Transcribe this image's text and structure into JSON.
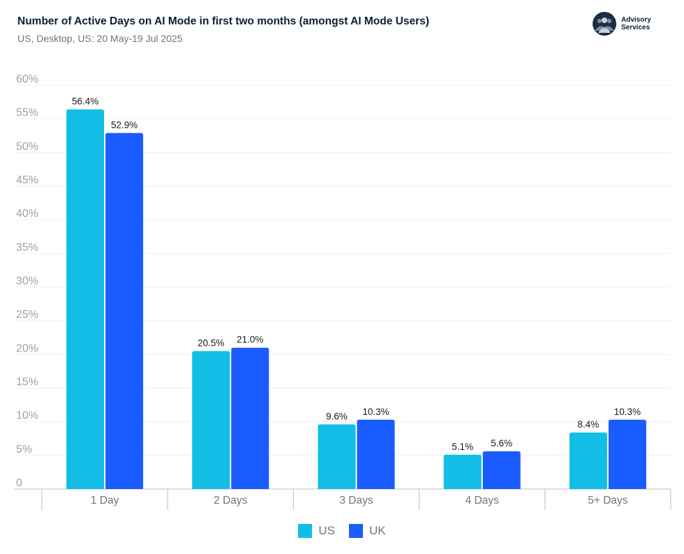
{
  "header": {
    "title": "Number of Active Days on AI Mode in first two months (amongst AI Mode Users)",
    "subtitle": "US, Desktop, US: 20 May-19 Jul 2025"
  },
  "brand": {
    "line1": "Advisory",
    "line2": "Services",
    "logo_icon": "people-group-icon"
  },
  "chart_data": {
    "type": "bar",
    "title": "Number of Active Days on AI Mode in first two months (amongst AI Mode Users)",
    "subtitle": "US, Desktop, US: 20 May-19 Jul 2025",
    "categories": [
      "1 Day",
      "2 Days",
      "3 Days",
      "4 Days",
      "5+ Days"
    ],
    "series": [
      {
        "name": "US",
        "color": "#12bee6",
        "values": [
          56.4,
          20.5,
          9.6,
          5.1,
          8.4
        ],
        "labels": [
          "56.4%",
          "20.5%",
          "9.6%",
          "5.1%",
          "8.4%"
        ]
      },
      {
        "name": "UK",
        "color": "#1a5cff",
        "values": [
          52.9,
          21.0,
          10.3,
          5.6,
          10.3
        ],
        "labels": [
          "52.9%",
          "21.0%",
          "10.3%",
          "5.6%",
          "10.3%"
        ]
      }
    ],
    "yticks": [
      {
        "value": 0,
        "label": "0"
      },
      {
        "value": 5,
        "label": "5%"
      },
      {
        "value": 10,
        "label": "10%"
      },
      {
        "value": 15,
        "label": "15%"
      },
      {
        "value": 20,
        "label": "20%"
      },
      {
        "value": 25,
        "label": "25%"
      },
      {
        "value": 30,
        "label": "30%"
      },
      {
        "value": 35,
        "label": "35%"
      },
      {
        "value": 40,
        "label": "40%"
      },
      {
        "value": 45,
        "label": "45%"
      },
      {
        "value": 50,
        "label": "50%"
      },
      {
        "value": 55,
        "label": "55%"
      },
      {
        "value": 60,
        "label": "60%"
      }
    ],
    "ylim": [
      0,
      60
    ],
    "xlabel": "",
    "ylabel": "",
    "grid": true,
    "legend_position": "bottom-center"
  }
}
